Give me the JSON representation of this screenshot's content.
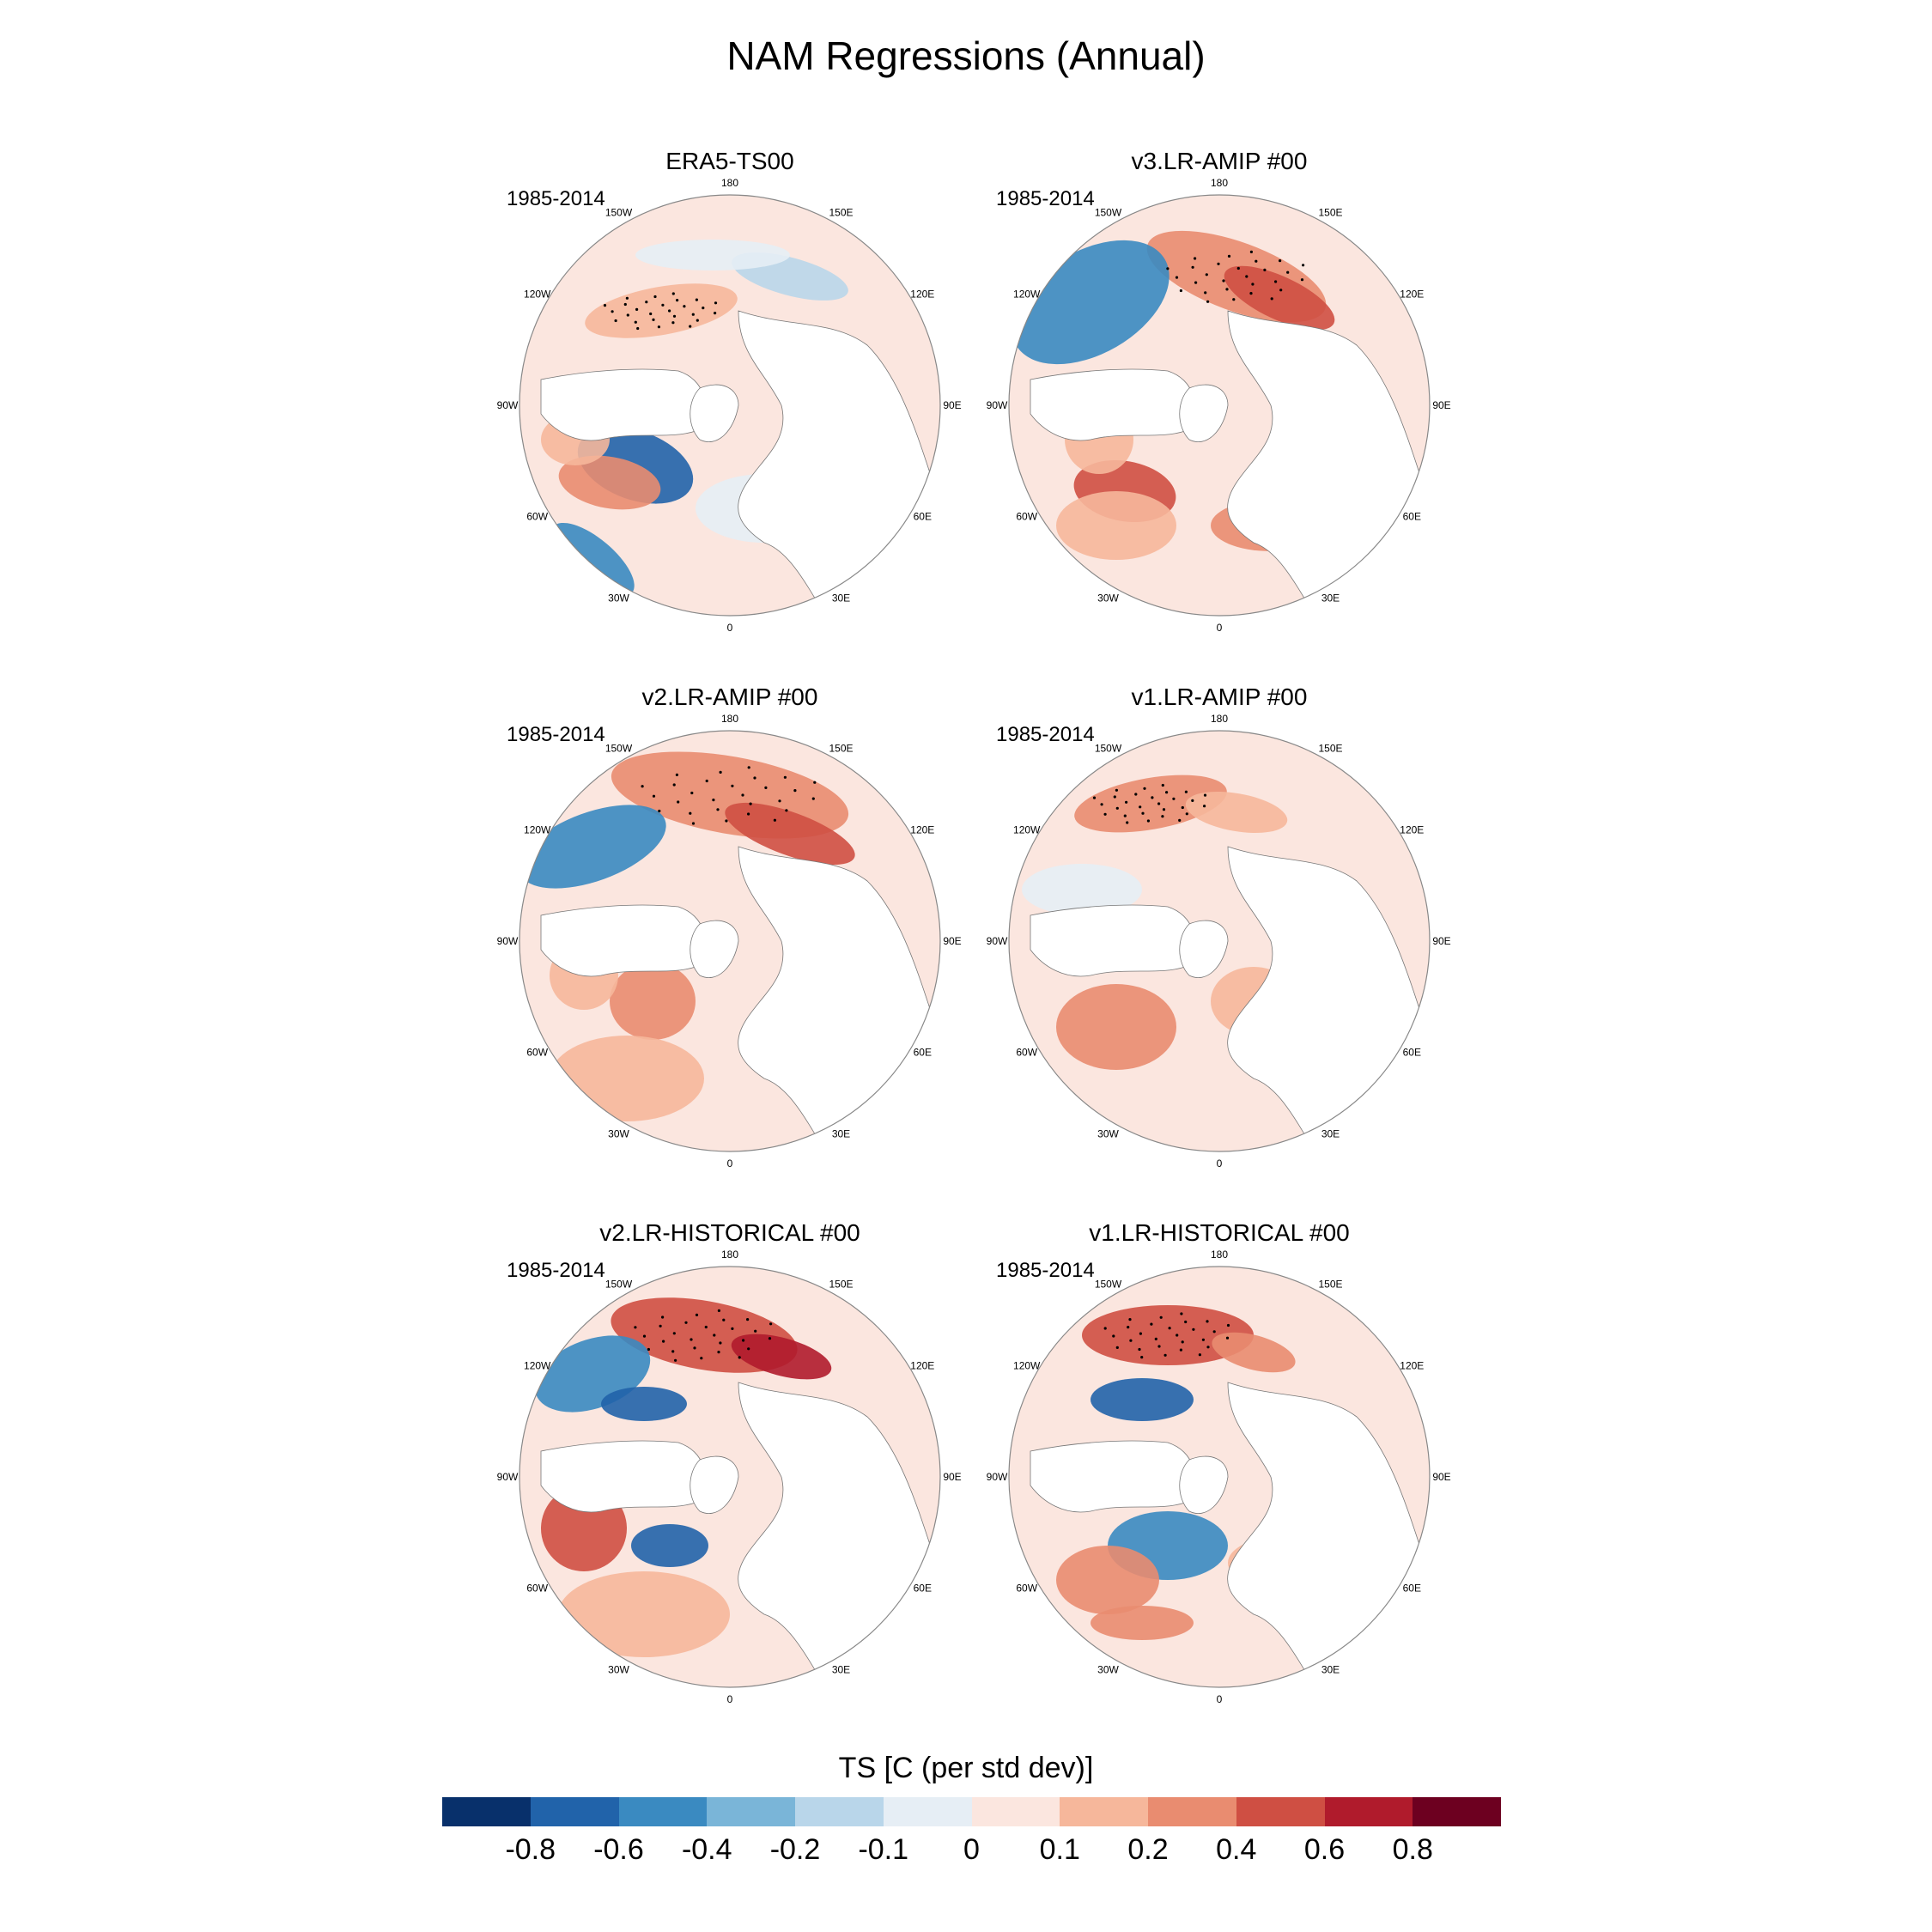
{
  "title": "NAM Regressions (Annual)",
  "colorbar": {
    "title": "TS [C (per std dev)]",
    "ticks": [
      "-0.8",
      "-0.6",
      "-0.4",
      "-0.2",
      "-0.1",
      "0",
      "0.1",
      "0.2",
      "0.4",
      "0.6",
      "0.8"
    ],
    "colors": [
      "#08306b",
      "#2163aa",
      "#3a8ac1",
      "#7ab5d8",
      "#b9d6ea",
      "#e6eef5",
      "#fbe6df",
      "#f6b79b",
      "#e98c70",
      "#cf4f43",
      "#b01b2c",
      "#6d0020"
    ]
  },
  "lon_labels": [
    "180",
    "150E",
    "120E",
    "90E",
    "60E",
    "30E",
    "0",
    "30W",
    "60W",
    "90W",
    "120W",
    "150W"
  ],
  "panels": [
    {
      "title": "ERA5-TS00",
      "period": "1985-2014"
    },
    {
      "title": "v3.LR-AMIP  #00",
      "period": "1985-2014"
    },
    {
      "title": "v2.LR-AMIP  #00",
      "period": "1985-2014"
    },
    {
      "title": "v1.LR-AMIP  #00",
      "period": "1985-2014"
    },
    {
      "title": "v2.LR-HISTORICAL  #00",
      "period": "1985-2014"
    },
    {
      "title": "v1.LR-HISTORICAL  #00",
      "period": "1985-2014"
    }
  ]
}
